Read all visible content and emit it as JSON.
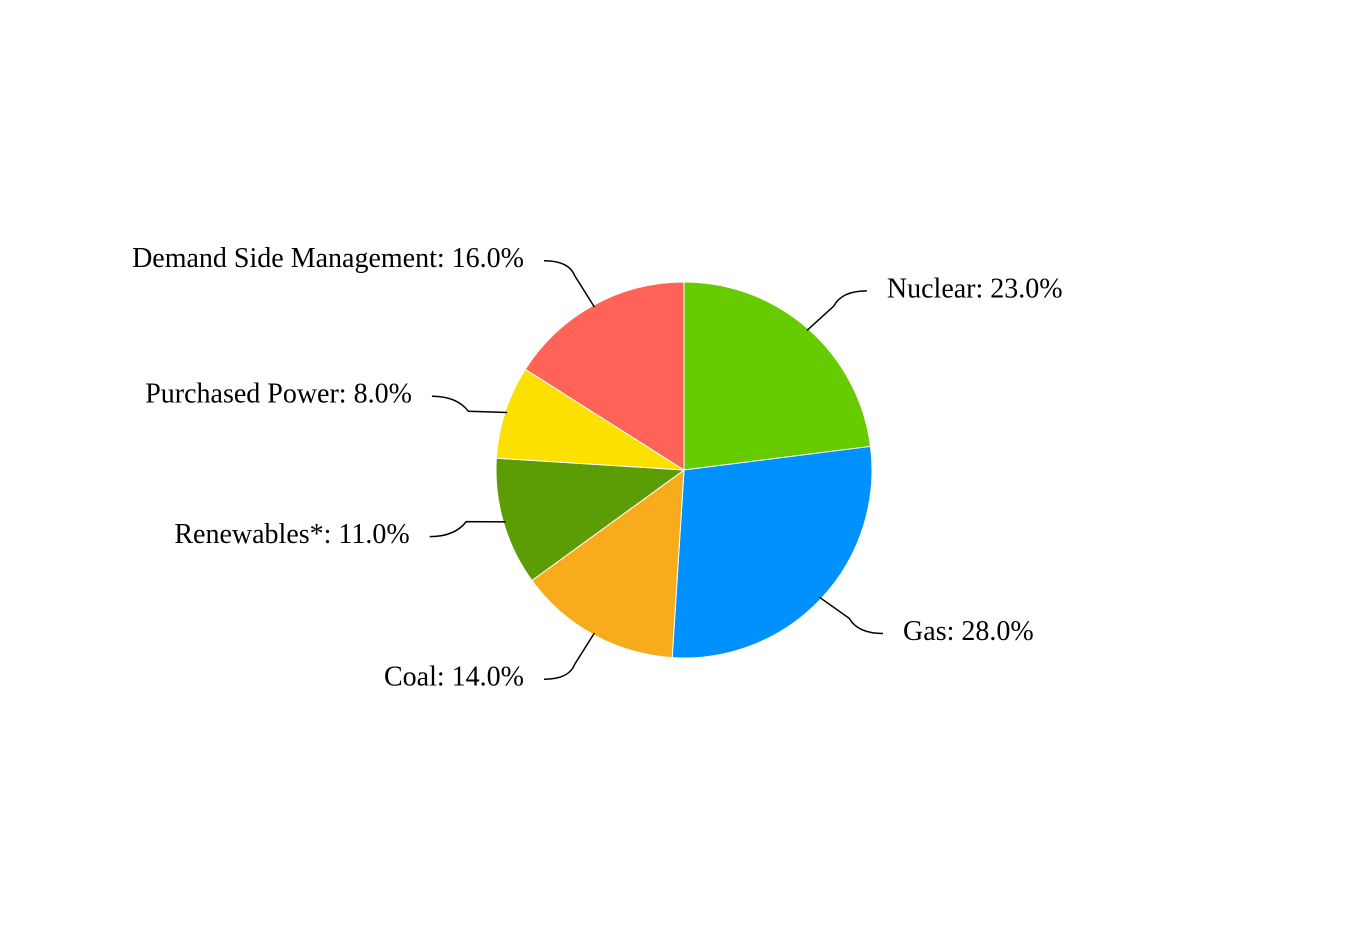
{
  "chart_data": {
    "type": "pie",
    "categories": [
      "Nuclear: 23.0%",
      "Gas: 28.0%",
      "Coal: 14.0%",
      "Renewables*: 11.0%",
      "Purchased Power: 8.0%",
      "Demand Side Management: 16.0%"
    ],
    "values": [
      23,
      28,
      14,
      11,
      8,
      16
    ],
    "colors": [
      "#66cc00",
      "#0091ff",
      "#f9ac1b",
      "#5c9c05",
      "#fbe000",
      "#ff6358"
    ]
  }
}
